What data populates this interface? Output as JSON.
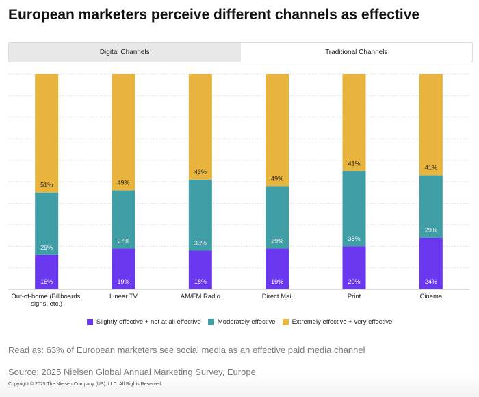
{
  "title": "European marketers perceive different channels as effective",
  "tabs": [
    {
      "label": "Digital Channels",
      "active": false
    },
    {
      "label": "Traditional Channels",
      "active": true
    }
  ],
  "chart_data": {
    "type": "bar",
    "stacked": true,
    "categories": [
      "Out-of-home (Billboards, signs, etc.)",
      "Linear TV",
      "AM/FM Radio",
      "Direct Mail",
      "Print",
      "Cinema"
    ],
    "category_label_lines": [
      [
        "Out-of-home (Billboards,",
        "signs, etc.)"
      ],
      [
        "Linear TV"
      ],
      [
        "AM/FM Radio"
      ],
      [
        "Direct Mail"
      ],
      [
        "Print"
      ],
      [
        "Cinema"
      ]
    ],
    "series": [
      {
        "name": "Slightly effective + not at all effective",
        "color": "#6a38ee",
        "values": [
          16,
          19,
          18,
          19,
          20,
          24
        ]
      },
      {
        "name": "Moderately effective",
        "color": "#409ea7",
        "values": [
          29,
          27,
          33,
          29,
          35,
          29
        ]
      },
      {
        "name": "Extremely effective + very effective",
        "color": "#e8b43d",
        "values": [
          51,
          49,
          43,
          49,
          41,
          41
        ]
      }
    ],
    "value_suffix": "%",
    "ylim": [
      0,
      100
    ],
    "grid": true,
    "legend_position": "bottom"
  },
  "read_as": "Read as: 63% of European marketers see social media as an effective paid media channel",
  "source": "Source: 2025 Nielsen Global Annual Marketing Survey, Europe",
  "copyright": "Copyright © 2025 The Nielsen Company (US), LLC. All Rights Reserved."
}
